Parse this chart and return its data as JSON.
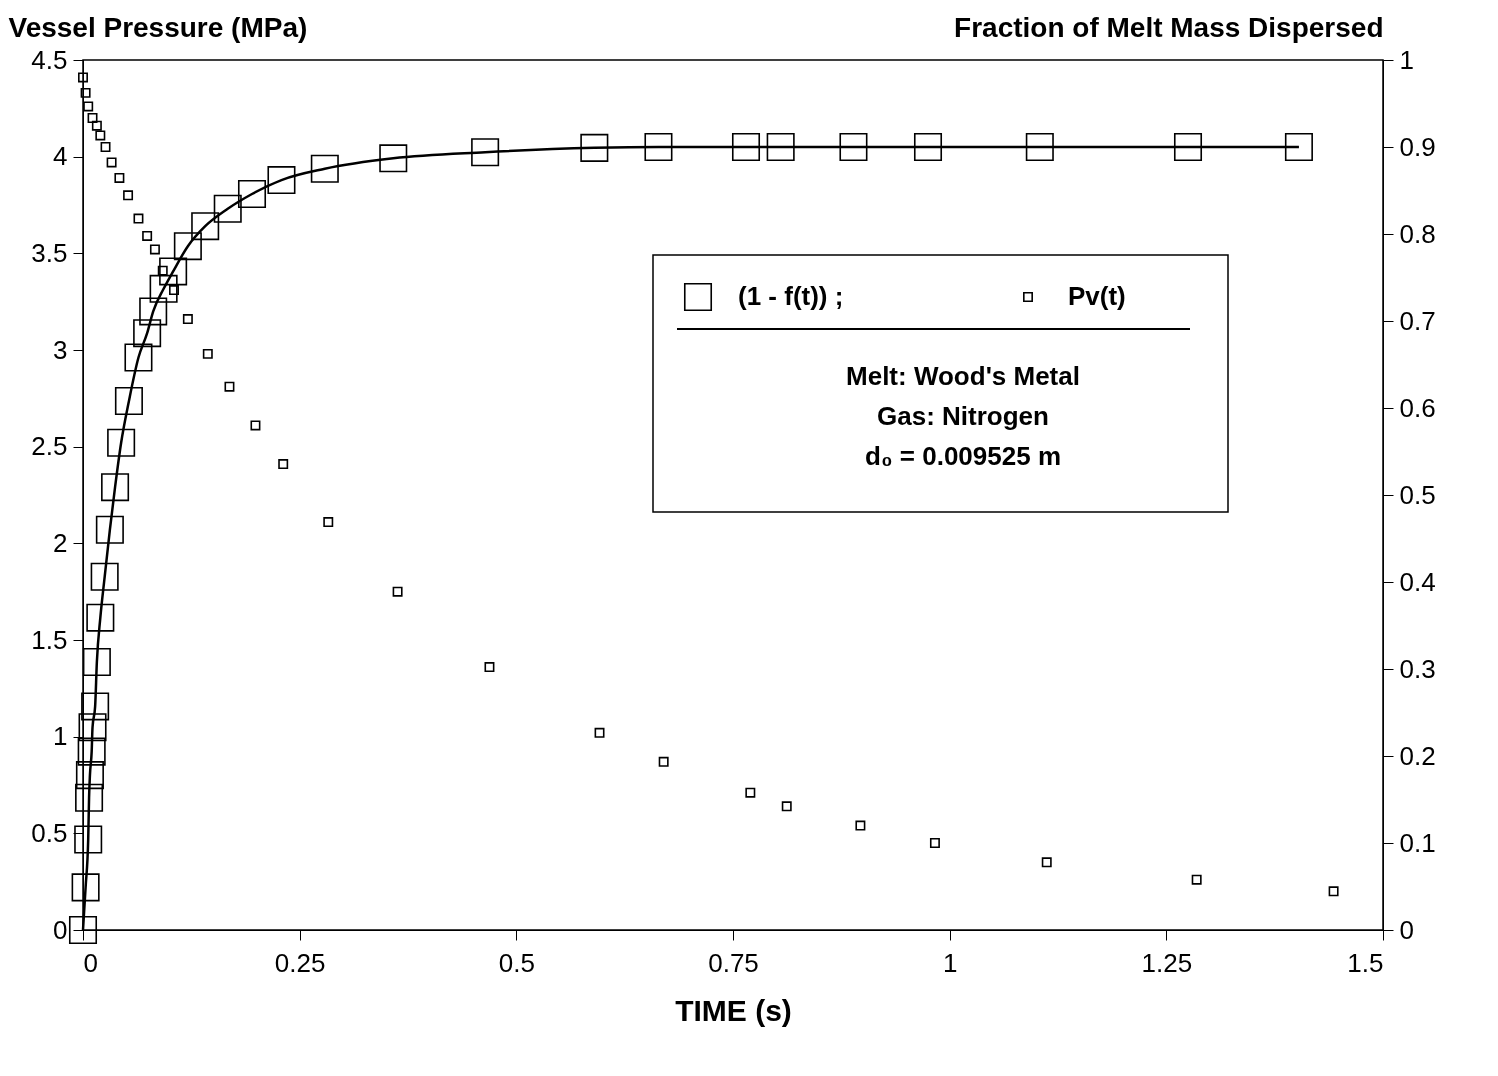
{
  "chart_data": {
    "type": "scatter",
    "xlabel": "TIME (s)",
    "ylabel": "Vessel Pressure (MPa)",
    "y2label": "Fraction of Melt Mass Dispersed",
    "xlim": [
      0,
      1.5
    ],
    "xticks": [
      0,
      0.25,
      0.5,
      0.75,
      1,
      1.25,
      1.5
    ],
    "ylim": [
      0,
      4.5
    ],
    "yticks": [
      0,
      0.5,
      1,
      1.5,
      2,
      2.5,
      3,
      3.5,
      4,
      4.5
    ],
    "y2lim": [
      0,
      1
    ],
    "y2ticks": [
      0,
      0.1,
      0.2,
      0.3,
      0.4,
      0.5,
      0.6,
      0.7,
      0.8,
      0.9,
      1
    ],
    "marker": "square",
    "legend": "right",
    "grid": false,
    "series": [
      {
        "name": "(1 - f(t)) ;",
        "color": "#000000",
        "axis": "y2",
        "x": [
          0,
          0.003,
          0.006,
          0.007,
          0.008,
          0.01,
          0.011,
          0.014,
          0.016,
          0.02,
          0.025,
          0.031,
          0.037,
          0.044,
          0.053,
          0.064,
          0.074,
          0.081,
          0.093,
          0.104,
          0.121,
          0.141,
          0.167,
          0.195,
          0.229,
          0.279,
          0.358,
          0.464,
          0.59,
          0.664,
          0.765,
          0.805,
          0.889,
          0.975,
          1.104,
          1.275,
          1.403
        ],
        "values": [
          0,
          0.049,
          0.104,
          0.152,
          0.178,
          0.205,
          0.233,
          0.257,
          0.308,
          0.359,
          0.406,
          0.46,
          0.509,
          0.56,
          0.608,
          0.658,
          0.686,
          0.711,
          0.737,
          0.757,
          0.786,
          0.809,
          0.829,
          0.846,
          0.862,
          0.875,
          0.887,
          0.894,
          0.899,
          0.9,
          0.9,
          0.9,
          0.9,
          0.9,
          0.9,
          0.9,
          0.9
        ]
      },
      {
        "name": "Pv(t)",
        "color": "#000000",
        "axis": "y",
        "x": [
          0,
          0.003,
          0.006,
          0.011,
          0.016,
          0.02,
          0.026,
          0.033,
          0.042,
          0.052,
          0.064,
          0.074,
          0.083,
          0.092,
          0.105,
          0.121,
          0.144,
          0.169,
          0.199,
          0.231,
          0.283,
          0.363,
          0.469,
          0.596,
          0.67,
          0.77,
          0.812,
          0.897,
          0.983,
          1.112,
          1.285,
          1.443
        ],
        "values": [
          4.41,
          4.33,
          4.26,
          4.2,
          4.16,
          4.11,
          4.05,
          3.97,
          3.89,
          3.8,
          3.68,
          3.59,
          3.52,
          3.41,
          3.31,
          3.16,
          2.98,
          2.81,
          2.61,
          2.41,
          2.11,
          1.75,
          1.36,
          1.02,
          0.87,
          0.71,
          0.64,
          0.54,
          0.45,
          0.35,
          0.26,
          0.2
        ]
      },
      {
        "type": "line",
        "color": "#000000",
        "axis": "y2",
        "line_style": "solid",
        "marker": "none",
        "x": [
          0,
          0.003,
          0.006,
          0.007,
          0.008,
          0.01,
          0.011,
          0.014,
          0.016,
          0.02,
          0.025,
          0.031,
          0.037,
          0.044,
          0.053,
          0.064,
          0.074,
          0.081,
          0.093,
          0.104,
          0.121,
          0.141,
          0.167,
          0.195,
          0.229,
          0.279,
          0.358,
          0.464,
          0.59,
          0.664,
          0.765,
          0.805,
          0.889,
          0.975,
          1.104,
          1.275,
          1.403
        ],
        "values": [
          0,
          0.049,
          0.104,
          0.152,
          0.178,
          0.205,
          0.233,
          0.257,
          0.308,
          0.359,
          0.406,
          0.46,
          0.509,
          0.56,
          0.608,
          0.658,
          0.686,
          0.711,
          0.737,
          0.757,
          0.786,
          0.809,
          0.829,
          0.846,
          0.862,
          0.875,
          0.887,
          0.894,
          0.899,
          0.9,
          0.9,
          0.9,
          0.9,
          0.9,
          0.9,
          0.9,
          0.9
        ]
      }
    ],
    "annotations": [
      "Melt: Wood's Metal",
      "Gas: Nitrogen",
      "d₀ = 0.009525 m"
    ]
  }
}
